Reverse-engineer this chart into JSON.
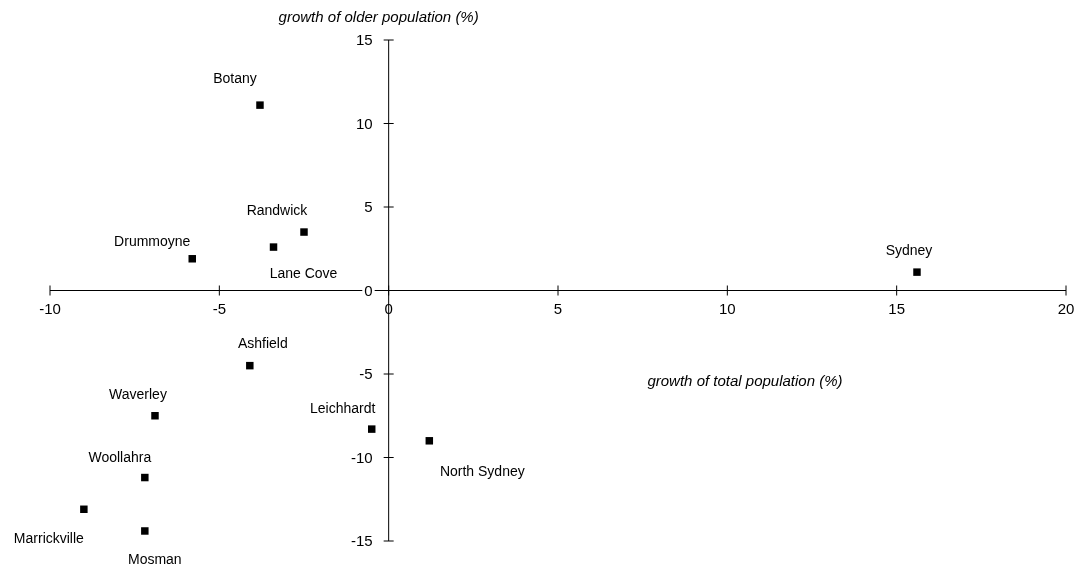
{
  "chart_data": {
    "type": "scatter",
    "xlabel": "growth of total population (%)",
    "ylabel": "growth of older population (%)",
    "x": [
      -3.8,
      -2.5,
      -3.4,
      -5.8,
      15.6,
      -4.1,
      -6.9,
      -0.5,
      1.2,
      -7.2,
      -9.0,
      -7.2
    ],
    "series": [
      {
        "color": "#000000",
        "values": [
          11.1,
          3.5,
          2.6,
          1.9,
          1.1,
          -4.5,
          -7.5,
          -8.3,
          -9.0,
          -11.2,
          -13.1,
          -14.4
        ]
      }
    ],
    "annotations": [
      {
        "text": "Botany",
        "x": -3.8,
        "y": 11.1
      },
      {
        "text": "Randwick",
        "x": -2.5,
        "y": 3.5
      },
      {
        "text": "Lane Cove",
        "x": -3.4,
        "y": 2.6
      },
      {
        "text": "Drummoyne",
        "x": -5.8,
        "y": 1.9
      },
      {
        "text": "Sydney",
        "x": 15.6,
        "y": 1.1
      },
      {
        "text": "Ashfield",
        "x": -4.1,
        "y": -4.5
      },
      {
        "text": "Waverley",
        "x": -6.9,
        "y": -7.5
      },
      {
        "text": "Leichhardt",
        "x": -0.5,
        "y": -8.3
      },
      {
        "text": "North Sydney",
        "x": 1.2,
        "y": -9.0
      },
      {
        "text": "Woollahra",
        "x": -7.2,
        "y": -11.2
      },
      {
        "text": "Marrickville",
        "x": -9.0,
        "y": -13.1
      },
      {
        "text": "Mosman",
        "x": -7.2,
        "y": -14.4
      }
    ],
    "xlim": [
      -10,
      20
    ],
    "ylim": [
      -15,
      15
    ],
    "xticks": [
      -10,
      -5,
      0,
      5,
      10,
      15,
      20
    ],
    "yticks": [
      -15,
      -10,
      -5,
      0,
      5,
      10,
      15
    ],
    "marker": "square",
    "grid": false
  }
}
